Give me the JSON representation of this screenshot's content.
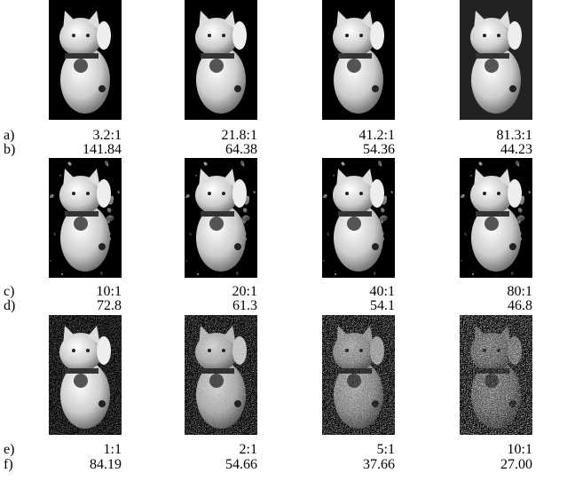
{
  "rows": [
    {
      "label": "a)",
      "values": [
        "3.2:1",
        "21.8:1",
        "41.2:1",
        "81.3:1"
      ]
    },
    {
      "label": "b)",
      "values": [
        "141.84",
        "64.38",
        "54.36",
        "44.23"
      ]
    },
    {
      "label": "c)",
      "values": [
        "10:1",
        "20:1",
        "40:1",
        "80:1"
      ]
    },
    {
      "label": "d)",
      "values": [
        "72.8",
        "61.3",
        "54.1",
        "46.8"
      ]
    },
    {
      "label": "e)",
      "values": [
        "1:1",
        "2:1",
        "5:1",
        "10:1"
      ]
    },
    {
      "label": "f)",
      "values": [
        "84.19",
        "54.66",
        "37.66",
        "27.00"
      ]
    }
  ]
}
